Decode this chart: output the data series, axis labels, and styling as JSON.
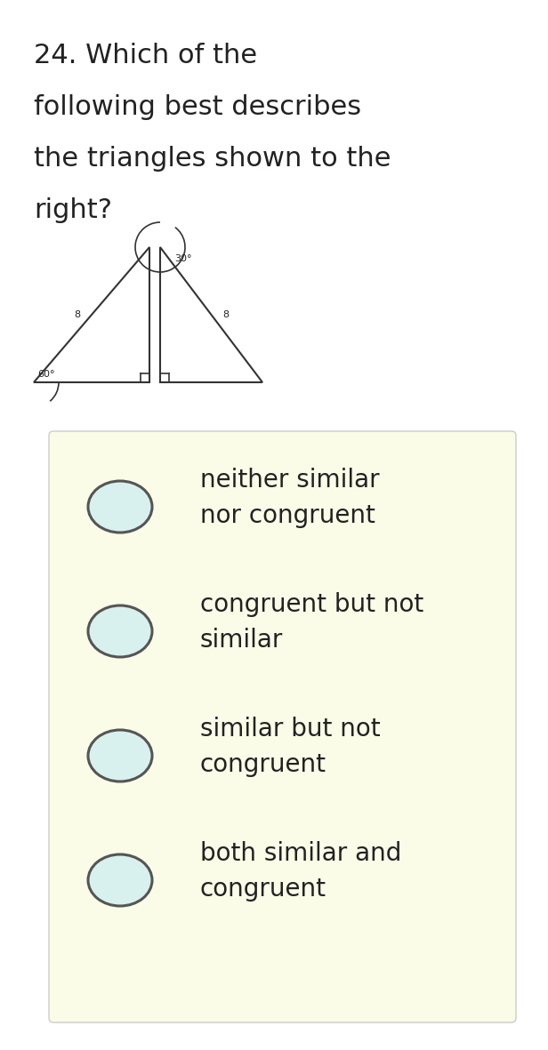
{
  "title_lines": [
    "24. Which of the",
    "following best describes",
    "the triangles shown to the",
    "right?"
  ],
  "bg_color": "#ffffff",
  "options_bg_color": "#fafce8",
  "options": [
    "neither similar\nnor congruent",
    "congruent but not\nsimilar",
    "similar but not\ncongruent",
    "both similar and\ncongruent"
  ],
  "circle_fill": "#d8f0ee",
  "circle_edge": "#555555",
  "text_color": "#222222",
  "line_color": "#333333",
  "question_fontsize": 22,
  "option_fontsize": 20
}
